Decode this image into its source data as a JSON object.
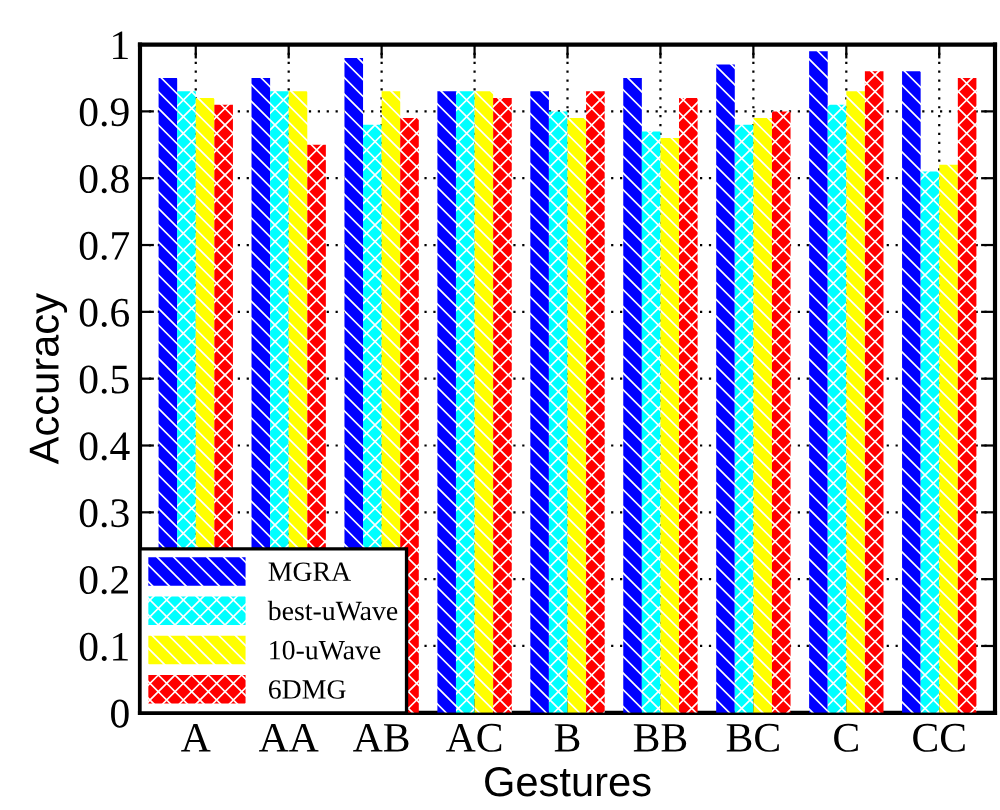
{
  "chart_data": {
    "type": "bar",
    "xlabel": "Gestures",
    "ylabel": "Accuracy",
    "categories": [
      "A",
      "AA",
      "AB",
      "AC",
      "B",
      "BB",
      "BC",
      "C",
      "CC"
    ],
    "series": [
      {
        "name": "MGRA",
        "color": "#0000ff",
        "values": [
          0.95,
          0.95,
          0.98,
          0.93,
          0.93,
          0.95,
          0.97,
          0.99,
          0.96
        ]
      },
      {
        "name": "best-uWave",
        "color": "#00ffff",
        "values": [
          0.93,
          0.93,
          0.88,
          0.93,
          0.9,
          0.87,
          0.88,
          0.91,
          0.81
        ]
      },
      {
        "name": "10-uWave",
        "color": "#ffff00",
        "values": [
          0.92,
          0.93,
          0.93,
          0.93,
          0.89,
          0.86,
          0.89,
          0.93,
          0.82
        ]
      },
      {
        "name": "6DMG",
        "color": "#ff0000",
        "values": [
          0.91,
          0.85,
          0.89,
          0.92,
          0.93,
          0.92,
          0.9,
          0.96,
          0.95
        ]
      }
    ],
    "ylim": [
      0,
      1
    ],
    "yticks": [
      0,
      0.1,
      0.2,
      0.3,
      0.4,
      0.5,
      0.6,
      0.7,
      0.8,
      0.9,
      1
    ],
    "grid": true,
    "legend": "bottom left"
  }
}
